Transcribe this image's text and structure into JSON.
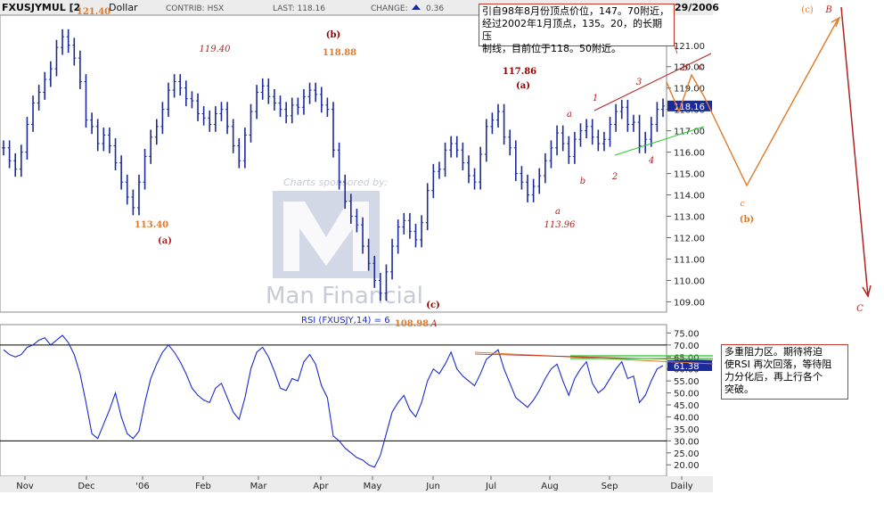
{
  "header": {
    "symbol": "FXUSJYMUL [2",
    "currency": "Dollar",
    "contrib": "CONTRIB: HSX",
    "last": "LAST: 118.16",
    "change_label": "CHANGE:",
    "change_value": "0.36",
    "date_partial": "29/2006"
  },
  "watermark": {
    "sponsor": "Charts sponsored by:",
    "brand": "Man Financial"
  },
  "note_top": {
    "lines": [
      "引自98年8月份顶点价位，147。70附近，",
      "经过2002年1月顶点，135。20，的长期压",
      "制线，目前位于118。50附近。"
    ]
  },
  "note_bottom": {
    "lines": [
      "多重阻力区。期待将迫",
      "使RSI 再次回落，等待阻",
      "力分化后，再上行各个",
      "突破。"
    ]
  },
  "colors": {
    "price": "#1a2a9a",
    "rsi": "#1a2acc",
    "annotation_red": "#b22222",
    "annotation_orange": "#e07a2a",
    "trend_green": "#22cc22",
    "last_tag": "#1a2a9a"
  },
  "chart_data": [
    {
      "type": "line",
      "title": "FXUSJYMUL",
      "ylim": [
        108.6,
        122.2
      ],
      "y_ticks": [
        109.0,
        110.0,
        111.0,
        112.0,
        113.0,
        114.0,
        115.0,
        116.0,
        117.0,
        118.0,
        119.0,
        120.0,
        121.0
      ],
      "x_ticks": [
        "Nov",
        "Dec",
        "'06",
        "Feb",
        "Mar",
        "Apr",
        "May",
        "Jun",
        "Jul",
        "Aug",
        "Sep",
        "Daily"
      ],
      "last_value": "118.16",
      "series": [
        {
          "values": [
            116.2,
            115.6,
            115.2,
            116.0,
            117.3,
            118.3,
            118.8,
            119.4,
            119.9,
            120.9,
            121.4,
            121.0,
            120.4,
            119.3,
            117.5,
            117.2,
            116.4,
            116.8,
            116.3,
            115.5,
            114.6,
            113.9,
            113.4,
            114.6,
            115.8,
            116.7,
            117.2,
            118.0,
            118.9,
            119.3,
            119.0,
            118.5,
            118.4,
            117.8,
            117.6,
            117.3,
            117.8,
            118.0,
            117.2,
            116.3,
            115.6,
            116.8,
            117.9,
            118.8,
            119.1,
            118.6,
            118.3,
            118.0,
            117.7,
            118.2,
            118.1,
            118.6,
            118.9,
            118.7,
            118.2,
            118.0,
            116.1,
            114.6,
            113.7,
            113.0,
            112.6,
            111.6,
            110.8,
            110.0,
            109.4,
            110.4,
            111.6,
            112.5,
            112.8,
            112.3,
            111.9,
            112.7,
            114.2,
            115.1,
            115.2,
            116.1,
            116.4,
            116.1,
            115.5,
            114.9,
            114.6,
            115.9,
            117.2,
            117.5,
            117.9,
            116.7,
            116.2,
            115.0,
            114.6,
            114.0,
            114.4,
            114.9,
            115.6,
            116.2,
            116.9,
            116.4,
            115.8,
            116.6,
            117.0,
            117.2,
            116.7,
            116.4,
            116.6,
            117.3,
            117.9,
            118.1,
            117.3,
            117.4,
            116.3,
            116.6,
            117.3,
            118.0,
            118.16
          ]
        }
      ]
    },
    {
      "type": "line",
      "title": "RSI (FXUSJY,14) = 6",
      "ylim": [
        16,
        77
      ],
      "y_ticks": [
        20.0,
        25.0,
        30.0,
        35.0,
        40.0,
        45.0,
        50.0,
        55.0,
        60.0,
        65.0,
        70.0,
        75.0
      ],
      "reference_lines": [
        70,
        30
      ],
      "last_value": "61.38",
      "series": [
        {
          "values": [
            68,
            66,
            65,
            66,
            69,
            70,
            72,
            73,
            70,
            72,
            74,
            71,
            66,
            58,
            46,
            33,
            31,
            37,
            43,
            50,
            40,
            33,
            31,
            34,
            46,
            56,
            62,
            67,
            70,
            67,
            63,
            58,
            52,
            49,
            47,
            46,
            52,
            54,
            48,
            42,
            39,
            48,
            60,
            67,
            69,
            65,
            59,
            52,
            51,
            56,
            55,
            63,
            66,
            62,
            53,
            48,
            32,
            30,
            27,
            25,
            23,
            22,
            20,
            19,
            24,
            33,
            42,
            46,
            49,
            43,
            40,
            46,
            55,
            60,
            58,
            62,
            67,
            60,
            57,
            55,
            53,
            58,
            64,
            66,
            68,
            60,
            54,
            48,
            46,
            44,
            47,
            51,
            56,
            60,
            62,
            55,
            49,
            56,
            60,
            63,
            54,
            50,
            52,
            56,
            60,
            63,
            56,
            57,
            46,
            49,
            55,
            60,
            61.38
          ]
        }
      ],
      "x_ticks": [
        "Nov",
        "Dec",
        "'06",
        "Feb",
        "Mar",
        "Apr",
        "May",
        "Jun",
        "Jul",
        "Aug",
        "Sep",
        "Daily"
      ]
    }
  ],
  "annotations": {
    "price_labels": [
      "121.40",
      "113.40",
      "119.40",
      "118.88",
      "108.98",
      "117.86",
      "113.96"
    ],
    "wave_labels": [
      "(a)",
      "(b)",
      "(c)",
      "(a)",
      "a",
      "b",
      "1",
      "2",
      "3",
      "4",
      "b",
      "c",
      "c",
      "(b)",
      "(c)",
      "B",
      "C",
      "A",
      "a"
    ]
  }
}
